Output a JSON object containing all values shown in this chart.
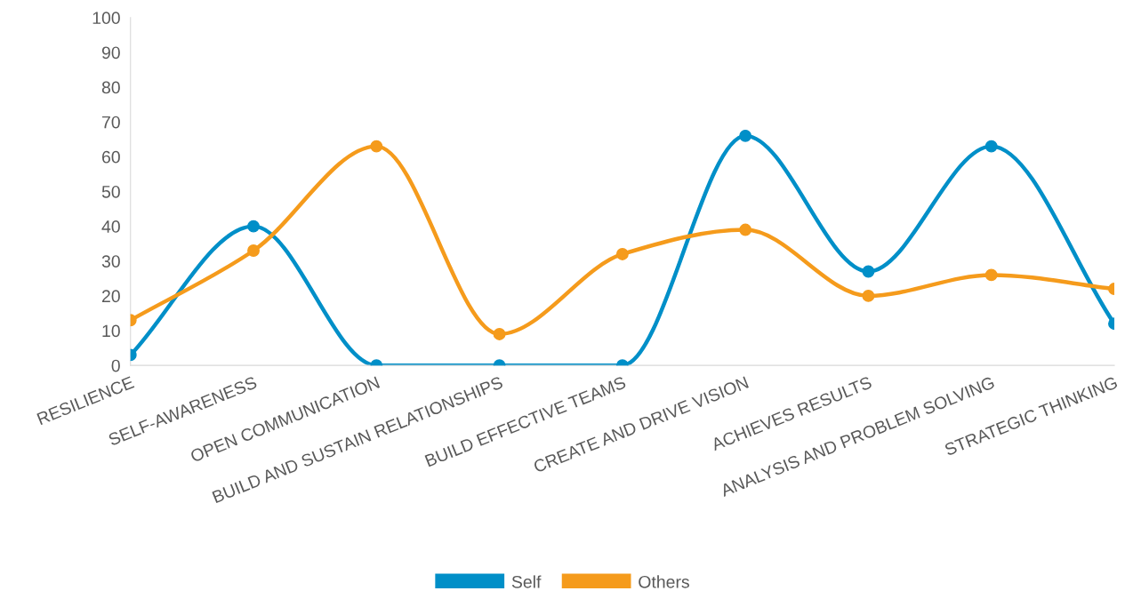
{
  "chart_data": {
    "type": "line",
    "categories": [
      "RESILIENCE",
      "SELF-AWARENESS",
      "OPEN COMMUNICATION",
      "BUILD AND SUSTAIN RELATIONSHIPS",
      "BUILD EFFECTIVE TEAMS",
      "CREATE AND DRIVE VISION",
      "ACHIEVES RESULTS",
      "ANALYSIS AND PROBLEM SOLVING",
      "STRATEGIC THINKING"
    ],
    "series": [
      {
        "name": "Self",
        "color": "#008fc8",
        "values": [
          3,
          40,
          0,
          0,
          0,
          66,
          27,
          63,
          12
        ]
      },
      {
        "name": "Others",
        "color": "#f59b1c",
        "values": [
          13,
          33,
          63,
          9,
          32,
          39,
          20,
          26,
          22
        ]
      }
    ],
    "ylim": [
      0,
      100
    ],
    "yticks": [
      0,
      10,
      20,
      30,
      40,
      50,
      60,
      70,
      80,
      90,
      100
    ],
    "grid": false,
    "legend": "bottom",
    "marker": "circle",
    "line_style": "solid"
  }
}
